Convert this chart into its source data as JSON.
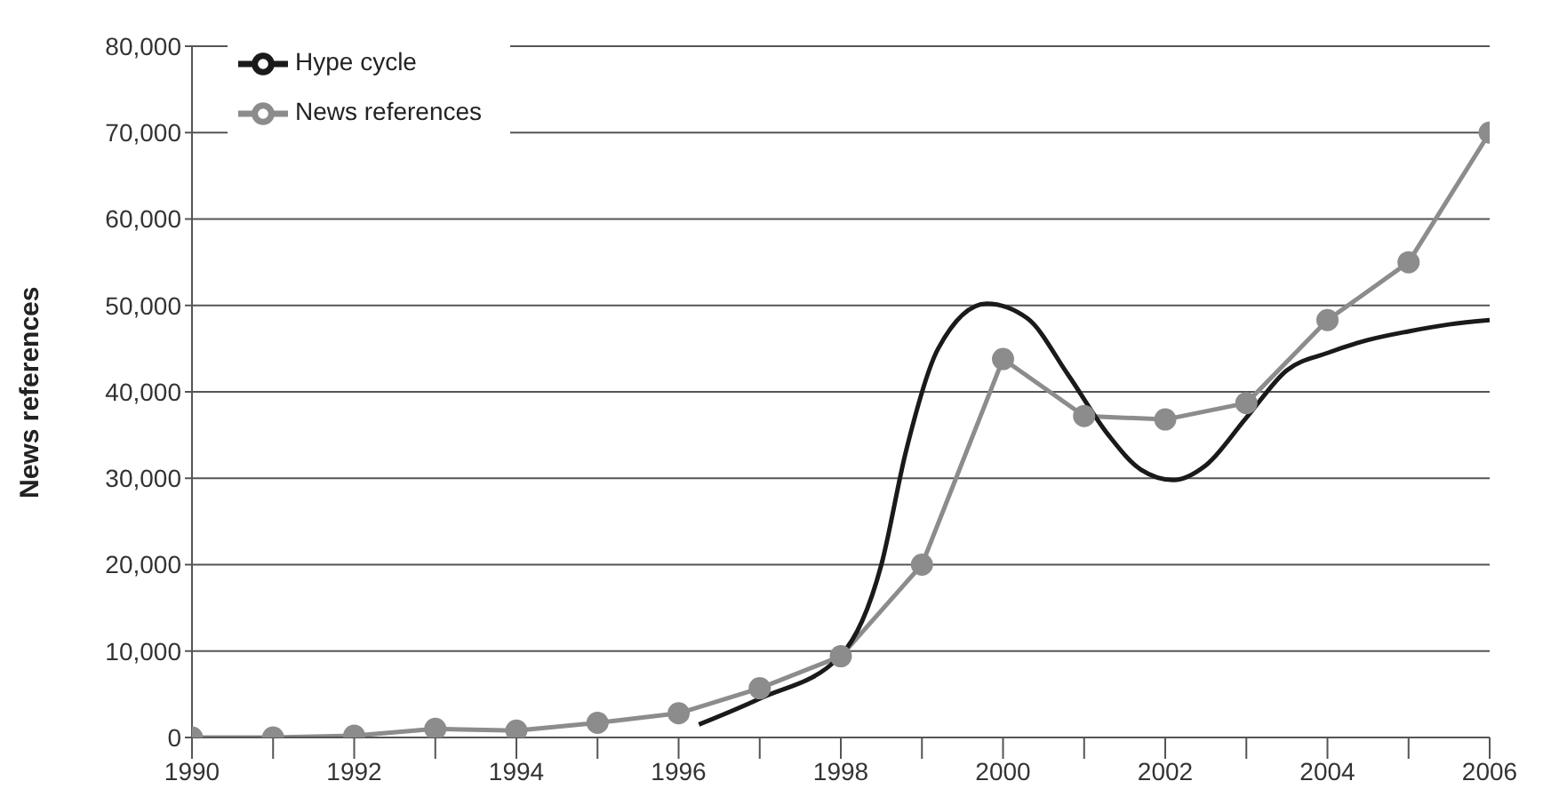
{
  "chart_data": {
    "type": "line",
    "ylabel": "News references",
    "xlim": [
      1990,
      2006
    ],
    "ylim": [
      0,
      80000
    ],
    "xticks": [
      1990,
      {
        "value": 1991,
        "label": null
      },
      1992,
      {
        "value": 1993,
        "label": null
      },
      1994,
      {
        "value": 1995,
        "label": null
      },
      1996,
      {
        "value": 1997,
        "label": null
      },
      1998,
      {
        "value": 1999,
        "label": null
      },
      2000,
      {
        "value": 2001,
        "label": null
      },
      2002,
      {
        "value": 2003,
        "label": null
      },
      2004,
      {
        "value": 2005,
        "label": null
      },
      2006
    ],
    "yticks": [
      {
        "value": 0,
        "label": "0"
      },
      {
        "value": 10000,
        "label": "10,000"
      },
      {
        "value": 20000,
        "label": "20,000"
      },
      {
        "value": 30000,
        "label": "30,000"
      },
      {
        "value": 40000,
        "label": "40,000"
      },
      {
        "value": 50000,
        "label": "50,000"
      },
      {
        "value": 60000,
        "label": "60,000"
      },
      {
        "value": 70000,
        "label": "70,000"
      },
      {
        "value": 80000,
        "label": "80,000"
      }
    ],
    "grid": "y",
    "legend": "top left",
    "series": [
      {
        "name": "News references",
        "color": "#8c8c8c",
        "marker": "circle",
        "x": [
          1990,
          1991,
          1992,
          1993,
          1994,
          1995,
          1996,
          1997,
          1998,
          1999,
          2000,
          2001,
          2002,
          2003,
          2004,
          2005,
          2006
        ],
        "values": [
          0,
          0,
          200,
          1000,
          800,
          1700,
          2800,
          5700,
          9400,
          20000,
          43800,
          37200,
          36800,
          38700,
          48300,
          55000,
          70000
        ]
      },
      {
        "name": "Hype cycle",
        "color": "#1a1a1a",
        "marker": "none",
        "x": [
          1996.25,
          1997,
          1998,
          1998.5,
          1998.8,
          1999.2,
          1999.8,
          2000.3,
          2000.8,
          2001.3,
          2001.7,
          2002.1,
          2002.5,
          2003,
          2003.5,
          2004,
          2004.5,
          2005,
          2005.5,
          2006
        ],
        "values": [
          1500,
          4500,
          9500,
          20000,
          33000,
          45000,
          50200,
          48500,
          42000,
          35000,
          31000,
          29800,
          31500,
          37000,
          42500,
          44500,
          46000,
          47000,
          47800,
          48300
        ]
      }
    ]
  }
}
